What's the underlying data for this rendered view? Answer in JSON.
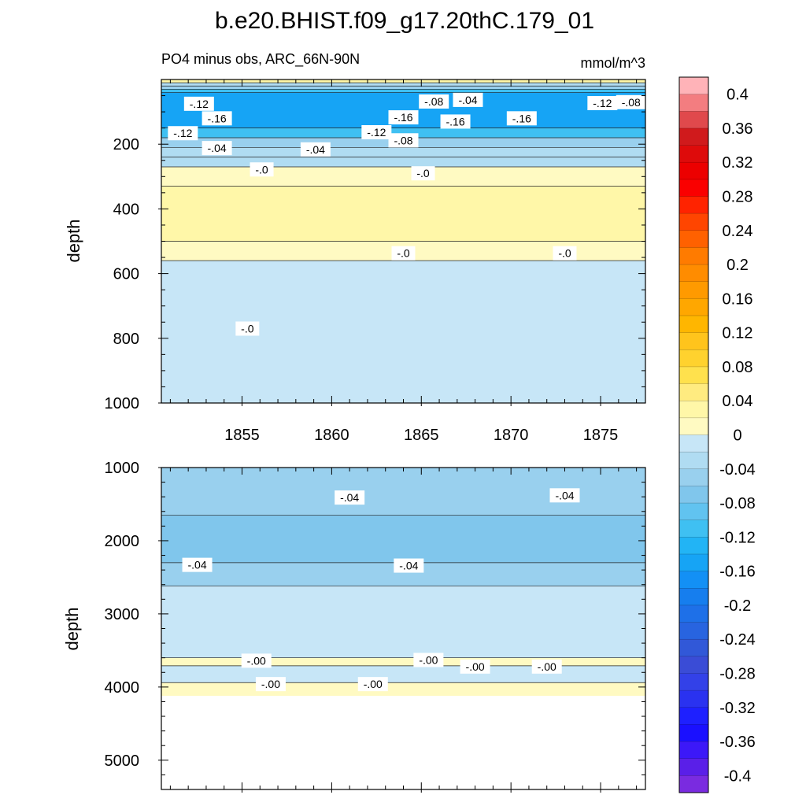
{
  "title": "b.e20.BHIST.f09_g17.20thC.179_01",
  "left_subtitle": "PO4 minus obs, ARC_66N-90N",
  "right_subtitle": "mmol/m^3",
  "chart_data": [
    {
      "type": "heatmap",
      "panel": "upper",
      "ylabel": "depth",
      "ylim": [
        1000,
        0
      ],
      "yticks": [
        200,
        400,
        600,
        800,
        1000
      ],
      "xlim": [
        1850.5,
        1877.5
      ],
      "xticks": [
        1855,
        1860,
        1865,
        1870,
        1875
      ],
      "bands": [
        {
          "from": 0,
          "to": 10,
          "value": 0.02
        },
        {
          "from": 10,
          "to": 20,
          "value": -0.02
        },
        {
          "from": 20,
          "to": 30,
          "value": -0.06
        },
        {
          "from": 30,
          "to": 40,
          "value": -0.1
        },
        {
          "from": 40,
          "to": 150,
          "value": -0.14
        },
        {
          "from": 150,
          "to": 180,
          "value": -0.1
        },
        {
          "from": 180,
          "to": 210,
          "value": -0.06
        },
        {
          "from": 210,
          "to": 240,
          "value": -0.04
        },
        {
          "from": 240,
          "to": 270,
          "value": -0.02
        },
        {
          "from": 270,
          "to": 330,
          "value": 0.01
        },
        {
          "from": 330,
          "to": 500,
          "value": 0.03
        },
        {
          "from": 500,
          "to": 560,
          "value": 0.01
        },
        {
          "from": 560,
          "to": 1000,
          "value": -0.01
        }
      ],
      "contour_labels": [
        {
          "text": "-.12",
          "x": 1852.6,
          "y": 75
        },
        {
          "text": "-.08",
          "x": 1865.7,
          "y": 68
        },
        {
          "text": "-.04",
          "x": 1867.6,
          "y": 63
        },
        {
          "text": "-.12",
          "x": 1875.1,
          "y": 73
        },
        {
          "text": "-.08",
          "x": 1876.7,
          "y": 70
        },
        {
          "text": "-.16",
          "x": 1853.6,
          "y": 120
        },
        {
          "text": "-.16",
          "x": 1864.0,
          "y": 117
        },
        {
          "text": "-.16",
          "x": 1866.9,
          "y": 130
        },
        {
          "text": "-.16",
          "x": 1870.6,
          "y": 120
        },
        {
          "text": "-.12",
          "x": 1851.7,
          "y": 166
        },
        {
          "text": "-.12",
          "x": 1862.5,
          "y": 163
        },
        {
          "text": "-.08",
          "x": 1864.0,
          "y": 188
        },
        {
          "text": "-.04",
          "x": 1853.6,
          "y": 212
        },
        {
          "text": "-.04",
          "x": 1859.1,
          "y": 216
        },
        {
          "text": "-.0",
          "x": 1856.1,
          "y": 278
        },
        {
          "text": "-.0",
          "x": 1865.1,
          "y": 290
        },
        {
          "text": "-.0",
          "x": 1864.0,
          "y": 537
        },
        {
          "text": "-.0",
          "x": 1873.0,
          "y": 537
        },
        {
          "text": "-.0",
          "x": 1855.3,
          "y": 770
        }
      ]
    },
    {
      "type": "heatmap",
      "panel": "lower",
      "ylabel": "depth",
      "ylim": [
        5400,
        1000
      ],
      "yticks": [
        1000,
        2000,
        3000,
        4000,
        5000
      ],
      "xlim": [
        1850.5,
        1877.5
      ],
      "xticks": [
        1855,
        1860,
        1865,
        1870,
        1875
      ],
      "bands": [
        {
          "from": 1000,
          "to": 1650,
          "value": -0.05
        },
        {
          "from": 1650,
          "to": 2300,
          "value": -0.07
        },
        {
          "from": 2300,
          "to": 2620,
          "value": -0.05
        },
        {
          "from": 2620,
          "to": 3600,
          "value": -0.01
        },
        {
          "from": 3600,
          "to": 3710,
          "value": 0.01
        },
        {
          "from": 3710,
          "to": 3940,
          "value": -0.01
        },
        {
          "from": 3940,
          "to": 4120,
          "value": 0.01
        }
      ],
      "no_data_below": 4120,
      "contour_labels": [
        {
          "text": "-.04",
          "x": 1861.0,
          "y": 1410
        },
        {
          "text": "-.04",
          "x": 1873.0,
          "y": 1380
        },
        {
          "text": "-.04",
          "x": 1852.5,
          "y": 2330
        },
        {
          "text": "-.04",
          "x": 1864.3,
          "y": 2340
        },
        {
          "text": "-.00",
          "x": 1855.8,
          "y": 3640
        },
        {
          "text": "-.00",
          "x": 1865.4,
          "y": 3630
        },
        {
          "text": "-.00",
          "x": 1868.0,
          "y": 3720
        },
        {
          "text": "-.00",
          "x": 1872.0,
          "y": 3720
        },
        {
          "text": "-.00",
          "x": 1856.6,
          "y": 3960
        },
        {
          "text": "-.00",
          "x": 1862.3,
          "y": 3960
        }
      ]
    }
  ],
  "colorbar": {
    "min": -0.42,
    "max": 0.42,
    "step": 0.02,
    "labels": [
      "0.4",
      "0.36",
      "0.32",
      "0.28",
      "0.24",
      "0.2",
      "0.16",
      "0.12",
      "0.08",
      "0.04",
      "0",
      "-0.04",
      "-0.08",
      "-0.12",
      "-0.16",
      "-0.2",
      "-0.24",
      "-0.28",
      "-0.32",
      "-0.36",
      "-0.4"
    ],
    "colors": [
      "#FFB3B8",
      "#F37D80",
      "#E0494C",
      "#D01A1C",
      "#DE0B0B",
      "#EC0000",
      "#FA0000",
      "#FF2300",
      "#FF4500",
      "#FF6100",
      "#FF7B00",
      "#FF8C00",
      "#FF9A00",
      "#FFA700",
      "#FFB600",
      "#FFC41C",
      "#FFD22E",
      "#FFE14D",
      "#FFEB80",
      "#FFF7A8",
      "#FFFAC2",
      "#C7E6F7",
      "#B0DCF2",
      "#99D0EE",
      "#80C6EC",
      "#61C3F0",
      "#3FC0F2",
      "#22B4F5",
      "#16A4F5",
      "#1390F5",
      "#167EEE",
      "#1E70E8",
      "#2864E0",
      "#3158D8",
      "#3A4CD6",
      "#3341E8",
      "#2A32F0",
      "#1E20FF",
      "#1A10FF",
      "#3C18F8",
      "#5A1FE8",
      "#7A2BE0"
    ]
  }
}
